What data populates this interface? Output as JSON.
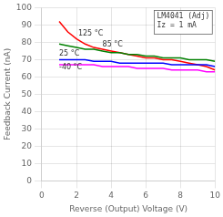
{
  "chart_data": {
    "type": "line",
    "title": "LM4041 (Adj)\nIz = 1 mA",
    "xlabel": "Reverse (Output) Voltage (V)",
    "ylabel": "Feedback Current (nA)",
    "xlim": [
      0,
      10
    ],
    "ylim": [
      0,
      100
    ],
    "xticks": [
      0,
      2,
      4,
      6,
      8,
      10
    ],
    "yticks": [
      0,
      10,
      20,
      30,
      40,
      50,
      60,
      70,
      80,
      90,
      100
    ],
    "grid": true,
    "x": [
      1.0,
      1.5,
      2.0,
      2.5,
      3.0,
      3.5,
      4.0,
      4.5,
      5.0,
      5.5,
      6.0,
      6.5,
      7.0,
      7.5,
      8.0,
      8.5,
      9.0,
      9.5,
      10.0
    ],
    "series": [
      {
        "name": "-40 °C",
        "color": "#ff00ff",
        "values": [
          67,
          67,
          67,
          67,
          67,
          66,
          66,
          66,
          66,
          65,
          65,
          65,
          65,
          64,
          64,
          64,
          64,
          63,
          63
        ]
      },
      {
        "name": "25 °C",
        "color": "#0000ff",
        "values": [
          70,
          70,
          70,
          70,
          69,
          69,
          69,
          68,
          68,
          68,
          68,
          68,
          68,
          67,
          67,
          67,
          67,
          67,
          66
        ]
      },
      {
        "name": "85 °C",
        "color": "#008000",
        "values": [
          79,
          78,
          77,
          76,
          76,
          75,
          74,
          74,
          73,
          73,
          72,
          72,
          71,
          71,
          71,
          70,
          70,
          70,
          69
        ]
      },
      {
        "name": "125 °C",
        "color": "#ff0000",
        "values": [
          92,
          86,
          82,
          79,
          77,
          76,
          75,
          74,
          73,
          72,
          71,
          71,
          70,
          70,
          69,
          68,
          67,
          66,
          64
        ]
      }
    ],
    "annotations": [
      {
        "text": "125 °C",
        "x": 2.1,
        "y": 83
      },
      {
        "text": "85 °C",
        "x": 3.5,
        "y": 76.5
      },
      {
        "text": "25 °C",
        "x": 1.0,
        "y": 71.5
      },
      {
        "text": "-40 °C",
        "x": 1.0,
        "y": 63.5
      }
    ]
  }
}
